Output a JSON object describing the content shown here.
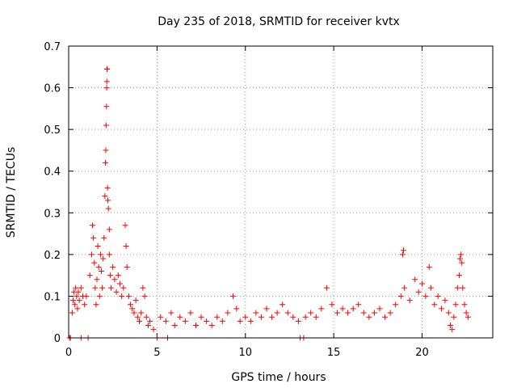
{
  "chart_data": {
    "type": "scatter",
    "title": "Day 235 of 2018, SRMTID for receiver kvtx",
    "xlabel": "GPS time / hours",
    "ylabel": "SRMTID / TECUs",
    "xlim": [
      0,
      24
    ],
    "ylim": [
      0,
      0.7
    ],
    "xticks": [
      0,
      5,
      10,
      15,
      20
    ],
    "xtick_labels": [
      "0",
      "5",
      "10",
      "15",
      "20"
    ],
    "yticks": [
      0,
      0.1,
      0.2,
      0.3,
      0.4,
      0.5,
      0.6,
      0.7
    ],
    "ytick_labels": [
      "0",
      "0.1",
      "0.2",
      "0.3",
      "0.4",
      "0.5",
      "0.6",
      "0.7"
    ],
    "grid": true,
    "marker": "+",
    "marker_color": "#ff0000",
    "series": [
      {
        "name": "SRMTID",
        "points": [
          [
            0.05,
            0.0
          ],
          [
            0.1,
            0.0
          ],
          [
            0.7,
            0.0
          ],
          [
            1.1,
            0.0
          ],
          [
            5.0,
            0.0
          ],
          [
            5.6,
            0.0
          ],
          [
            13.1,
            0.0
          ],
          [
            13.3,
            0.0
          ],
          [
            0.2,
            0.06
          ],
          [
            0.25,
            0.09
          ],
          [
            0.3,
            0.11
          ],
          [
            0.35,
            0.08
          ],
          [
            0.4,
            0.12
          ],
          [
            0.45,
            0.1
          ],
          [
            0.5,
            0.07
          ],
          [
            0.55,
            0.11
          ],
          [
            0.6,
            0.09
          ],
          [
            0.7,
            0.12
          ],
          [
            0.8,
            0.1
          ],
          [
            0.9,
            0.08
          ],
          [
            1.0,
            0.1
          ],
          [
            1.2,
            0.15
          ],
          [
            1.3,
            0.2
          ],
          [
            1.35,
            0.27
          ],
          [
            1.4,
            0.24
          ],
          [
            1.45,
            0.18
          ],
          [
            1.5,
            0.12
          ],
          [
            1.55,
            0.08
          ],
          [
            1.6,
            0.14
          ],
          [
            1.65,
            0.22
          ],
          [
            1.7,
            0.17
          ],
          [
            1.75,
            0.1
          ],
          [
            1.8,
            0.2
          ],
          [
            1.85,
            0.16
          ],
          [
            1.9,
            0.12
          ],
          [
            1.95,
            0.19
          ],
          [
            2.0,
            0.24
          ],
          [
            2.05,
            0.34
          ],
          [
            2.08,
            0.42
          ],
          [
            2.1,
            0.45
          ],
          [
            2.12,
            0.51
          ],
          [
            2.14,
            0.555
          ],
          [
            2.15,
            0.6
          ],
          [
            2.16,
            0.615
          ],
          [
            2.17,
            0.645
          ],
          [
            2.18,
            0.645
          ],
          [
            2.2,
            0.36
          ],
          [
            2.22,
            0.33
          ],
          [
            2.25,
            0.31
          ],
          [
            2.3,
            0.26
          ],
          [
            2.3,
            0.2
          ],
          [
            2.35,
            0.15
          ],
          [
            2.4,
            0.12
          ],
          [
            2.5,
            0.17
          ],
          [
            2.6,
            0.14
          ],
          [
            2.7,
            0.11
          ],
          [
            2.8,
            0.15
          ],
          [
            2.9,
            0.13
          ],
          [
            3.0,
            0.1
          ],
          [
            3.1,
            0.12
          ],
          [
            3.2,
            0.27
          ],
          [
            3.25,
            0.22
          ],
          [
            3.3,
            0.17
          ],
          [
            3.4,
            0.1
          ],
          [
            3.5,
            0.08
          ],
          [
            3.6,
            0.07
          ],
          [
            3.7,
            0.06
          ],
          [
            3.8,
            0.09
          ],
          [
            3.9,
            0.05
          ],
          [
            4.0,
            0.04
          ],
          [
            4.1,
            0.06
          ],
          [
            4.2,
            0.12
          ],
          [
            4.3,
            0.1
          ],
          [
            4.4,
            0.05
          ],
          [
            4.5,
            0.03
          ],
          [
            4.6,
            0.04
          ],
          [
            4.8,
            0.02
          ],
          [
            5.2,
            0.05
          ],
          [
            5.5,
            0.04
          ],
          [
            5.8,
            0.06
          ],
          [
            6.0,
            0.03
          ],
          [
            6.3,
            0.05
          ],
          [
            6.6,
            0.04
          ],
          [
            6.9,
            0.06
          ],
          [
            7.2,
            0.03
          ],
          [
            7.5,
            0.05
          ],
          [
            7.8,
            0.04
          ],
          [
            8.1,
            0.03
          ],
          [
            8.4,
            0.05
          ],
          [
            8.7,
            0.04
          ],
          [
            9.0,
            0.06
          ],
          [
            9.3,
            0.1
          ],
          [
            9.5,
            0.07
          ],
          [
            9.7,
            0.04
          ],
          [
            10.0,
            0.05
          ],
          [
            10.3,
            0.04
          ],
          [
            10.6,
            0.06
          ],
          [
            10.9,
            0.05
          ],
          [
            11.2,
            0.07
          ],
          [
            11.5,
            0.05
          ],
          [
            11.8,
            0.06
          ],
          [
            12.1,
            0.08
          ],
          [
            12.4,
            0.06
          ],
          [
            12.7,
            0.05
          ],
          [
            13.0,
            0.04
          ],
          [
            13.4,
            0.05
          ],
          [
            13.7,
            0.06
          ],
          [
            14.0,
            0.05
          ],
          [
            14.3,
            0.07
          ],
          [
            14.6,
            0.12
          ],
          [
            14.9,
            0.08
          ],
          [
            15.2,
            0.06
          ],
          [
            15.5,
            0.07
          ],
          [
            15.8,
            0.06
          ],
          [
            16.1,
            0.07
          ],
          [
            16.4,
            0.08
          ],
          [
            16.7,
            0.06
          ],
          [
            17.0,
            0.05
          ],
          [
            17.3,
            0.06
          ],
          [
            17.6,
            0.07
          ],
          [
            17.9,
            0.05
          ],
          [
            18.2,
            0.06
          ],
          [
            18.5,
            0.08
          ],
          [
            18.8,
            0.1
          ],
          [
            18.9,
            0.2
          ],
          [
            18.95,
            0.21
          ],
          [
            19.0,
            0.12
          ],
          [
            19.3,
            0.09
          ],
          [
            19.6,
            0.14
          ],
          [
            19.8,
            0.11
          ],
          [
            20.0,
            0.13
          ],
          [
            20.2,
            0.1
          ],
          [
            20.4,
            0.17
          ],
          [
            20.5,
            0.12
          ],
          [
            20.7,
            0.08
          ],
          [
            20.9,
            0.1
          ],
          [
            21.1,
            0.07
          ],
          [
            21.3,
            0.09
          ],
          [
            21.5,
            0.06
          ],
          [
            21.6,
            0.03
          ],
          [
            21.7,
            0.02
          ],
          [
            21.8,
            0.05
          ],
          [
            21.9,
            0.08
          ],
          [
            22.0,
            0.12
          ],
          [
            22.1,
            0.15
          ],
          [
            22.15,
            0.19
          ],
          [
            22.2,
            0.2
          ],
          [
            22.25,
            0.18
          ],
          [
            22.3,
            0.12
          ],
          [
            22.4,
            0.08
          ],
          [
            22.5,
            0.06
          ],
          [
            22.6,
            0.05
          ]
        ]
      }
    ]
  }
}
